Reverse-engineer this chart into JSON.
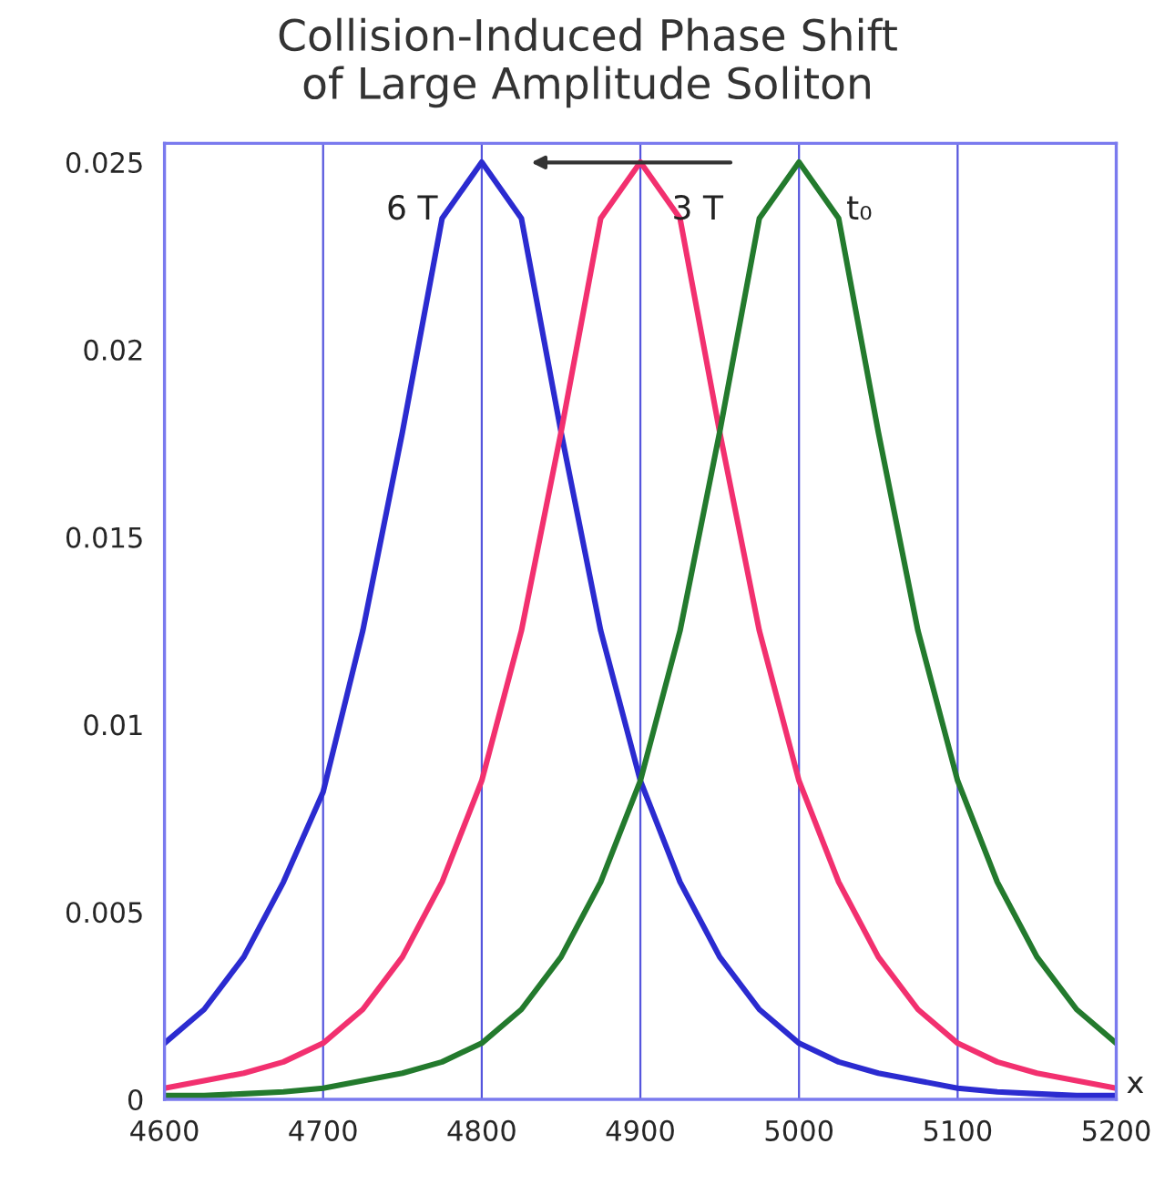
{
  "chart_data": {
    "type": "line",
    "title": "Collision-Induced Phase Shift\nof Large Amplitude Soliton",
    "xlabel": "x",
    "x": [
      4600,
      4625,
      4650,
      4675,
      4700,
      4725,
      4750,
      4775,
      4800,
      4825,
      4850,
      4875,
      4900,
      4925,
      4950,
      4975,
      5000,
      5025,
      5050,
      5075,
      5100,
      5125,
      5150,
      5175,
      5200
    ],
    "series": [
      {
        "color": "#2b2bd0",
        "values": [
          0.0015,
          0.0024,
          0.0038,
          0.0058,
          0.0082,
          0.0125,
          0.0178,
          0.0235,
          0.025,
          0.0235,
          0.0178,
          0.0125,
          0.0085,
          0.0058,
          0.0038,
          0.0024,
          0.0015,
          0.001,
          0.0007,
          0.0005,
          0.0003,
          0.0002,
          0.00015,
          0.0001,
          0.0001
        ]
      },
      {
        "color": "#f2306f",
        "values": [
          0.0003,
          0.0005,
          0.0007,
          0.001,
          0.0015,
          0.0024,
          0.0038,
          0.0058,
          0.0085,
          0.0125,
          0.0178,
          0.0235,
          0.025,
          0.0235,
          0.0178,
          0.0125,
          0.0085,
          0.0058,
          0.0038,
          0.0024,
          0.0015,
          0.001,
          0.0007,
          0.0005,
          0.0003
        ]
      },
      {
        "color": "#237a2d",
        "values": [
          0.0001,
          0.0001,
          0.00015,
          0.0002,
          0.0003,
          0.0005,
          0.0007,
          0.001,
          0.0015,
          0.0024,
          0.0038,
          0.0058,
          0.0085,
          0.0125,
          0.0178,
          0.0235,
          0.025,
          0.0235,
          0.0178,
          0.0125,
          0.0085,
          0.0058,
          0.0038,
          0.0024,
          0.0015
        ]
      }
    ],
    "xlim": [
      4600,
      5200
    ],
    "xticks": [
      4600,
      4700,
      4800,
      4900,
      5000,
      5100,
      5200
    ],
    "ylim": [
      0,
      0.0255
    ],
    "yticks": [
      0,
      0.005,
      0.01,
      0.015,
      0.02,
      0.025
    ],
    "grid": "x",
    "marker": "none",
    "line_style": "solid",
    "legend": false,
    "annotations": [
      "6 T",
      "3 T",
      "t₀"
    ]
  }
}
